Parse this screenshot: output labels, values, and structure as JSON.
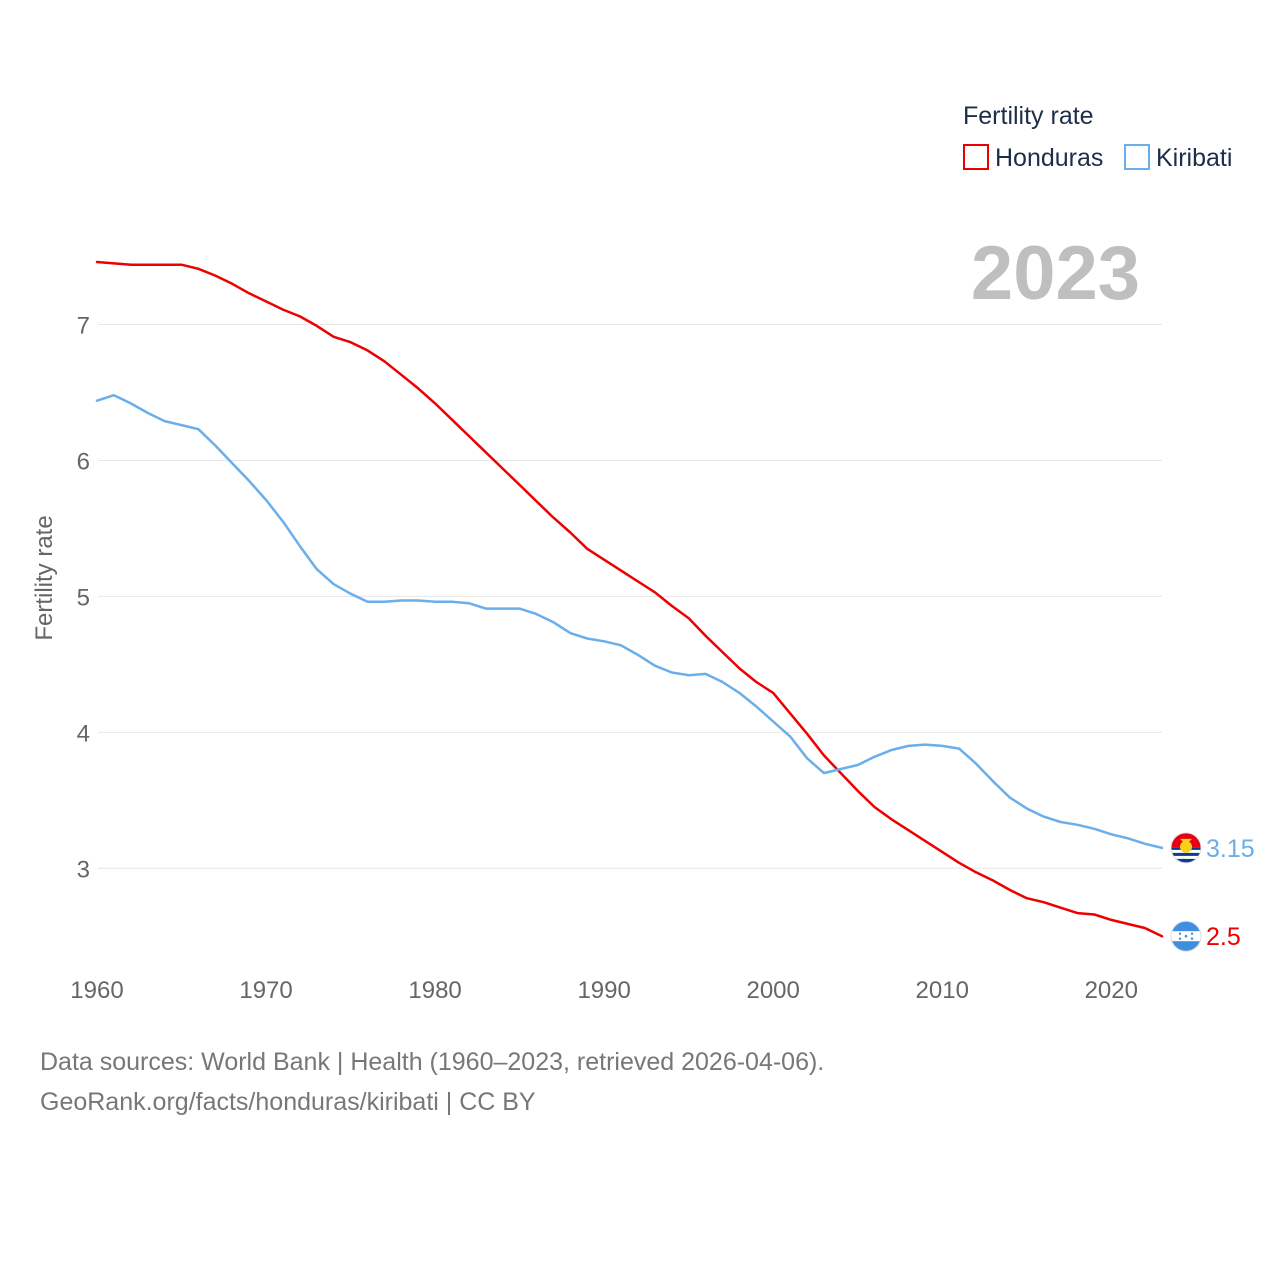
{
  "chart_data": {
    "type": "line",
    "ylabel": "Fertility rate",
    "year_label": "2023",
    "legend": {
      "title": "Fertility rate",
      "position": "top-right"
    },
    "x": [
      1960,
      1961,
      1962,
      1963,
      1964,
      1965,
      1966,
      1967,
      1968,
      1969,
      1970,
      1971,
      1972,
      1973,
      1974,
      1975,
      1976,
      1977,
      1978,
      1979,
      1980,
      1981,
      1982,
      1983,
      1984,
      1985,
      1986,
      1987,
      1988,
      1989,
      1990,
      1991,
      1992,
      1993,
      1994,
      1995,
      1996,
      1997,
      1998,
      1999,
      2000,
      2001,
      2002,
      2003,
      2004,
      2005,
      2006,
      2007,
      2008,
      2009,
      2010,
      2011,
      2012,
      2013,
      2014,
      2015,
      2016,
      2017,
      2018,
      2019,
      2020,
      2021,
      2022,
      2023
    ],
    "xlim": [
      1960,
      2023
    ],
    "ylim": [
      2.2,
      7.6
    ],
    "x_ticks": [
      1960,
      1970,
      1980,
      1990,
      2000,
      2010,
      2020
    ],
    "y_ticks": [
      3,
      4,
      5,
      6,
      7
    ],
    "grid": true,
    "series": [
      {
        "name": "Honduras",
        "color": "#ee0000",
        "end_label": "2.5",
        "flag": "honduras-flag-icon",
        "values": [
          7.46,
          7.45,
          7.44,
          7.44,
          7.44,
          7.44,
          7.41,
          7.36,
          7.3,
          7.23,
          7.17,
          7.11,
          7.06,
          6.99,
          6.91,
          6.87,
          6.81,
          6.73,
          6.63,
          6.53,
          6.42,
          6.3,
          6.18,
          6.06,
          5.94,
          5.82,
          5.7,
          5.58,
          5.47,
          5.35,
          5.27,
          5.19,
          5.11,
          5.03,
          4.93,
          4.84,
          4.71,
          4.59,
          4.47,
          4.37,
          4.29,
          4.14,
          3.99,
          3.83,
          3.7,
          3.57,
          3.45,
          3.36,
          3.28,
          3.2,
          3.12,
          3.04,
          2.97,
          2.91,
          2.84,
          2.78,
          2.75,
          2.71,
          2.67,
          2.66,
          2.62,
          2.59,
          2.56,
          2.5
        ]
      },
      {
        "name": "Kiribati",
        "color": "#6aaeea",
        "end_label": "3.15",
        "flag": "kiribati-flag-icon",
        "values": [
          6.44,
          6.48,
          6.42,
          6.35,
          6.29,
          6.26,
          6.23,
          6.11,
          5.98,
          5.85,
          5.71,
          5.55,
          5.37,
          5.2,
          5.09,
          5.02,
          4.96,
          4.96,
          4.97,
          4.97,
          4.96,
          4.96,
          4.95,
          4.91,
          4.91,
          4.91,
          4.87,
          4.81,
          4.73,
          4.69,
          4.67,
          4.64,
          4.57,
          4.49,
          4.44,
          4.42,
          4.43,
          4.37,
          4.29,
          4.19,
          4.08,
          3.97,
          3.81,
          3.7,
          3.73,
          3.76,
          3.82,
          3.87,
          3.9,
          3.91,
          3.9,
          3.88,
          3.77,
          3.64,
          3.52,
          3.44,
          3.38,
          3.34,
          3.32,
          3.29,
          3.25,
          3.22,
          3.18,
          3.15
        ]
      }
    ]
  },
  "footer": {
    "line1": "Data sources: World Bank | Health (1960–2023, retrieved 2026-04-06).",
    "line2": "GeoRank.org/facts/honduras/kiribati | CC BY"
  }
}
